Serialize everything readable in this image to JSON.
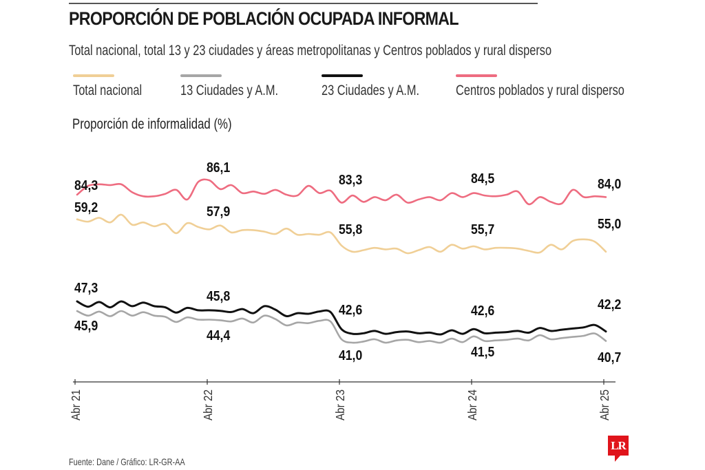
{
  "header": {
    "title": "PROPORCIÓN DE POBLACIÓN OCUPADA INFORMAL",
    "subtitle": "Total nacional, total 13 y 23 ciudades y áreas metropolitanas y Centros poblados y rural disperso"
  },
  "legend": [
    {
      "label": "Total nacional",
      "color": "#f0cf96"
    },
    {
      "label": "13 Ciudades y A.M.",
      "color": "#a6a6a6"
    },
    {
      "label": "23 Ciudades y A.M.",
      "color": "#111111"
    },
    {
      "label": "Centros poblados y rural disperso",
      "color": "#ee6c80"
    }
  ],
  "footer": {
    "source": "Fuente: Dane / Gráfico: LR-GR-AA",
    "logo": "LR"
  },
  "chart_data": {
    "type": "line",
    "title": "PROPORCIÓN DE POBLACIÓN OCUPADA INFORMAL",
    "subtitle": "Total nacional, total 13 y 23 ciudades y áreas metropolitanas y Centros poblados y rural disperso",
    "ylabel": "Proporción de informalidad (%)",
    "xlabel": "",
    "grid": false,
    "legend_position": "top",
    "x_ticks": [
      "Abr 21",
      "Abr 22",
      "Abr 23",
      "Abr 24",
      "Abr 25"
    ],
    "x_tick_index": [
      0,
      12,
      24,
      36,
      48
    ],
    "series": [
      {
        "name": "Centros poblados y rural disperso",
        "color": "#ee6c80",
        "values": [
          84.3,
          85.4,
          85.6,
          85.5,
          85.6,
          84.6,
          84.1,
          84.1,
          84.4,
          84.9,
          83.7,
          85.9,
          86.1,
          85.0,
          85.5,
          84.5,
          84.7,
          84.4,
          84.9,
          84.3,
          84.2,
          85.4,
          84.5,
          84.8,
          83.3,
          84.2,
          83.4,
          84.0,
          83.6,
          84.3,
          83.3,
          83.7,
          84.0,
          83.6,
          84.5,
          84.0,
          84.5,
          84.2,
          84.1,
          84.3,
          84.7,
          83.1,
          84.0,
          83.4,
          83.2,
          84.9,
          84.0,
          84.1,
          84.0
        ],
        "annotations": [
          {
            "index": 0,
            "label": "84,3"
          },
          {
            "index": 12,
            "label": "86,1"
          },
          {
            "index": 24,
            "label": "83,3"
          },
          {
            "index": 36,
            "label": "84,5"
          },
          {
            "index": 48,
            "label": "84,0"
          }
        ]
      },
      {
        "name": "Total nacional",
        "color": "#f0cf96",
        "values": [
          59.2,
          58.9,
          59.4,
          58.8,
          59.8,
          58.5,
          58.8,
          58.3,
          58.6,
          57.4,
          58.7,
          58.2,
          57.9,
          58.4,
          57.5,
          57.8,
          57.8,
          57.6,
          57.3,
          58.0,
          57.2,
          57.3,
          57.2,
          57.5,
          55.8,
          55.0,
          55.2,
          55.5,
          55.3,
          55.4,
          54.8,
          55.2,
          55.6,
          55.0,
          55.9,
          55.4,
          55.7,
          55.3,
          55.5,
          55.5,
          55.4,
          55.1,
          54.9,
          55.9,
          55.3,
          56.4,
          56.6,
          56.3,
          55.0
        ],
        "annotations": [
          {
            "index": 0,
            "label": "59,2"
          },
          {
            "index": 12,
            "label": "57,9"
          },
          {
            "index": 24,
            "label": "55,8"
          },
          {
            "index": 36,
            "label": "55,7"
          },
          {
            "index": 48,
            "label": "55,0"
          }
        ]
      },
      {
        "name": "23 Ciudades y A.M.",
        "color": "#111111",
        "values": [
          47.3,
          46.4,
          47.2,
          46.3,
          47.3,
          46.5,
          47.1,
          46.5,
          46.3,
          45.4,
          46.2,
          45.8,
          45.8,
          45.7,
          45.5,
          46.0,
          45.3,
          46.5,
          45.9,
          44.8,
          45.3,
          45.2,
          45.6,
          45.5,
          42.6,
          41.8,
          41.9,
          42.3,
          41.8,
          42.1,
          42.2,
          41.9,
          42.0,
          41.7,
          42.4,
          41.8,
          42.6,
          41.9,
          42.0,
          42.1,
          42.3,
          42.0,
          42.8,
          42.3,
          42.5,
          42.7,
          42.9,
          43.3,
          42.2
        ],
        "annotations": [
          {
            "index": 0,
            "label": "47,3"
          },
          {
            "index": 12,
            "label": "45,8"
          },
          {
            "index": 24,
            "label": "42,6"
          },
          {
            "index": 36,
            "label": "42,6"
          },
          {
            "index": 48,
            "label": "42,2"
          }
        ]
      },
      {
        "name": "13 Ciudades y A.M.",
        "color": "#a6a6a6",
        "values": [
          45.9,
          45.1,
          45.8,
          45.0,
          45.9,
          45.1,
          45.7,
          45.1,
          44.9,
          44.0,
          44.8,
          44.4,
          44.4,
          44.3,
          44.1,
          44.6,
          43.9,
          45.1,
          44.5,
          43.4,
          43.9,
          43.8,
          44.2,
          44.1,
          41.0,
          40.4,
          40.6,
          41.0,
          40.4,
          40.8,
          40.9,
          40.5,
          40.7,
          40.4,
          41.1,
          40.5,
          41.5,
          40.7,
          40.8,
          40.9,
          41.1,
          40.8,
          41.7,
          41.0,
          41.2,
          41.4,
          41.6,
          42.0,
          40.7
        ],
        "annotations": [
          {
            "index": 0,
            "label": "45,9"
          },
          {
            "index": 12,
            "label": "44,4"
          },
          {
            "index": 24,
            "label": "41,0"
          },
          {
            "index": 36,
            "label": "41,5"
          },
          {
            "index": 48,
            "label": "40,7"
          }
        ]
      }
    ]
  }
}
